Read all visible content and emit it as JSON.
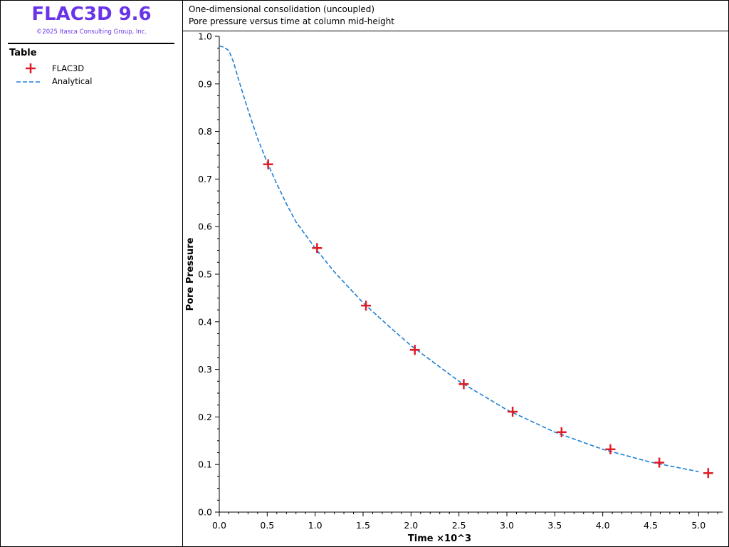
{
  "app": {
    "title": "FLAC3D 9.6",
    "copyright": "©2025 Itasca Consulting Group, Inc.",
    "brand_color": "#6a35e8"
  },
  "legend": {
    "heading": "Table",
    "items": [
      {
        "label": "FLAC3D",
        "marker": "plus-marker",
        "color": "#e01b24"
      },
      {
        "label": "Analytical",
        "marker": "dashed-line",
        "color": "#1f7fd6"
      }
    ]
  },
  "header": {
    "line1": "One-dimensional consolidation (uncoupled)",
    "line2": "Pore pressure versus time at column mid-height"
  },
  "chart_data": {
    "type": "line",
    "xlabel": "Time ×10^3",
    "ylabel": "Pore Pressure",
    "xlim": [
      0,
      5.25
    ],
    "ylim": [
      0,
      1.0
    ],
    "x_ticks": [
      "0.0",
      "0.5",
      "1.0",
      "1.5",
      "2.0",
      "2.5",
      "3.0",
      "3.5",
      "4.0",
      "4.5",
      "5.0"
    ],
    "y_ticks": [
      "0.0",
      "0.1",
      "0.2",
      "0.3",
      "0.4",
      "0.5",
      "0.6",
      "0.7",
      "0.8",
      "0.9",
      "1.0"
    ],
    "grid": false,
    "series": [
      {
        "name": "FLAC3D",
        "style": "markers",
        "color": "#e01b24",
        "x": [
          0.51,
          1.02,
          1.53,
          2.04,
          2.55,
          3.06,
          3.57,
          4.08,
          4.59,
          5.1
        ],
        "y": [
          0.731,
          0.555,
          0.434,
          0.341,
          0.269,
          0.211,
          0.168,
          0.132,
          0.104,
          0.082
        ]
      },
      {
        "name": "Analytical",
        "style": "dashed",
        "color": "#1f7fd6",
        "x": [
          0.0,
          0.05,
          0.1,
          0.15,
          0.2,
          0.3,
          0.4,
          0.5,
          0.6,
          0.7,
          0.8,
          1.0,
          1.2,
          1.5,
          1.8,
          2.0,
          2.5,
          3.0,
          3.5,
          4.0,
          4.5,
          5.0
        ],
        "y": [
          0.98,
          0.977,
          0.97,
          0.945,
          0.91,
          0.845,
          0.785,
          0.735,
          0.69,
          0.648,
          0.61,
          0.555,
          0.505,
          0.44,
          0.385,
          0.35,
          0.275,
          0.215,
          0.168,
          0.132,
          0.105,
          0.085
        ]
      }
    ]
  }
}
